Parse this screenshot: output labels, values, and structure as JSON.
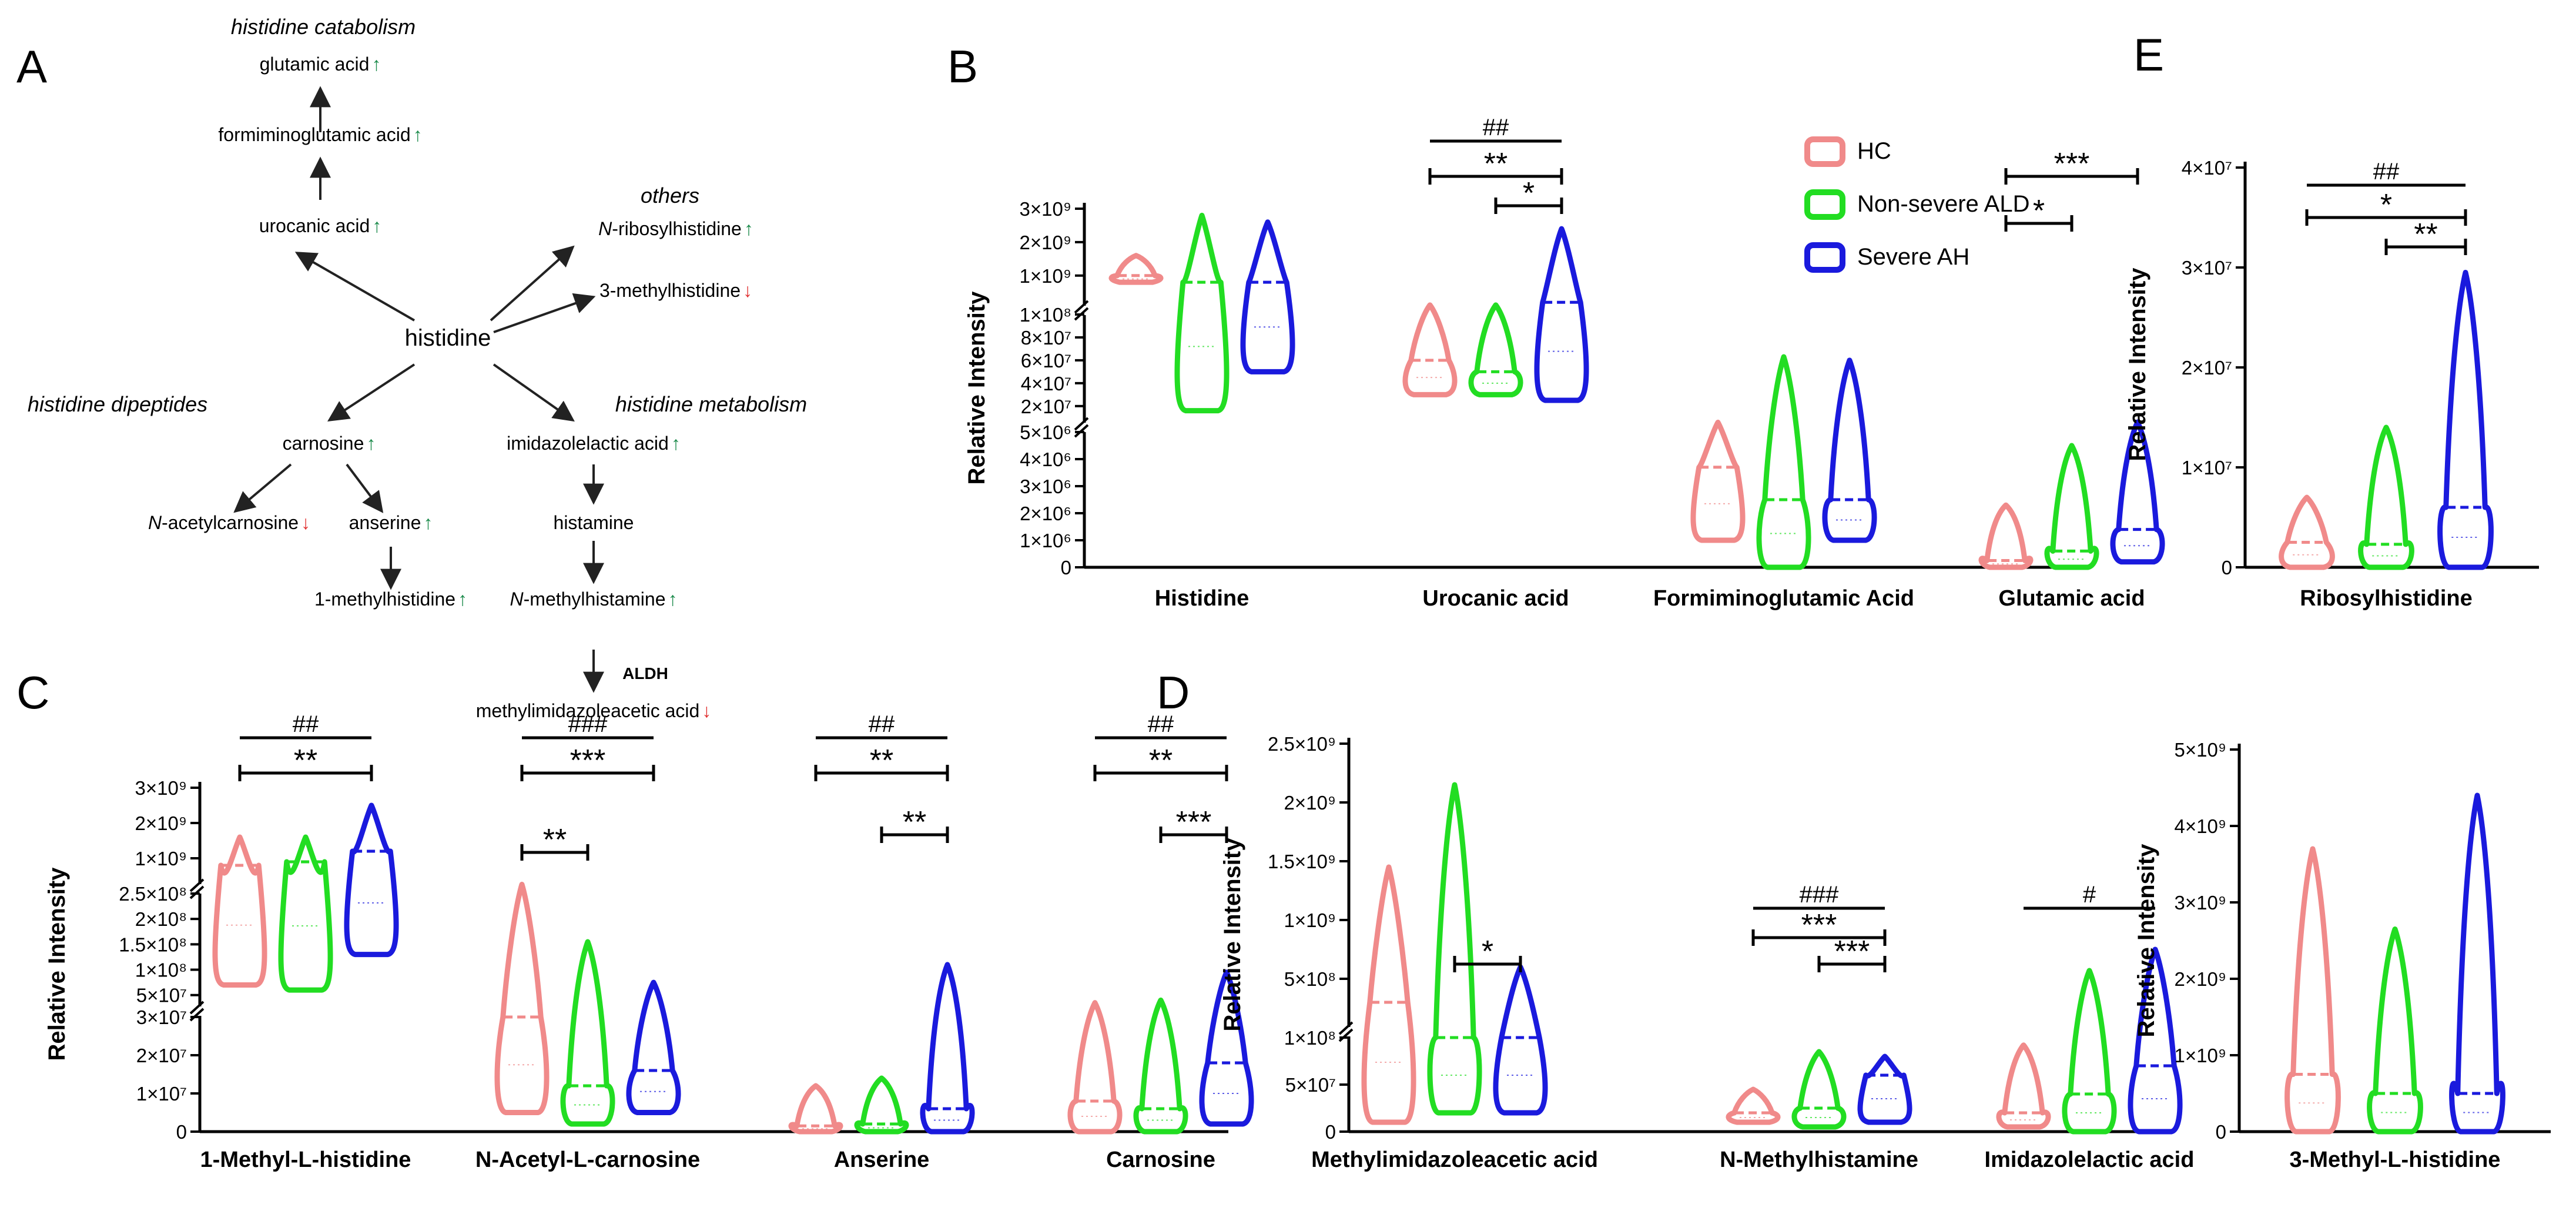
{
  "colors": {
    "hc": "#F08A8A",
    "nonsevere": "#22DD22",
    "severe": "#1A1ADD",
    "up": "#1a8a4a",
    "down": "#e03030"
  },
  "panel_letters": {
    "a": "A",
    "b": "B",
    "c": "C",
    "d": "D",
    "e": "E"
  },
  "pathway": {
    "center": "histidine",
    "titles": {
      "catabolism": "histidine catabolism",
      "others": "others",
      "dipeptides": "histidine dipeptides",
      "metabolism": "histidine metabolism"
    },
    "nodes": [
      {
        "id": "glutamic",
        "label": "glutamic acid",
        "italic_prefix": "",
        "dir": "up"
      },
      {
        "id": "formimino",
        "label": "formiminoglutamic acid",
        "italic_prefix": "",
        "dir": "up"
      },
      {
        "id": "urocanic",
        "label": "urocanic acid",
        "italic_prefix": "",
        "dir": "up"
      },
      {
        "id": "ribosyl",
        "label": "-ribosylhistidine",
        "italic_prefix": "N",
        "dir": "up"
      },
      {
        "id": "methylhis3",
        "label": "3-methylhistidine",
        "italic_prefix": "",
        "dir": "down"
      },
      {
        "id": "carnosine",
        "label": "carnosine",
        "italic_prefix": "",
        "dir": "up"
      },
      {
        "id": "imidazolelactic",
        "label": "imidazolelactic acid",
        "italic_prefix": "",
        "dir": "up"
      },
      {
        "id": "acetylcarnosine",
        "label": "-acetylcarnosine",
        "italic_prefix": "N",
        "dir": "down"
      },
      {
        "id": "anserine",
        "label": "anserine",
        "italic_prefix": "",
        "dir": "up"
      },
      {
        "id": "histamine",
        "label": "histamine",
        "italic_prefix": "",
        "dir": ""
      },
      {
        "id": "methylhis1",
        "label": "1-methylhistidine",
        "italic_prefix": "",
        "dir": "up"
      },
      {
        "id": "methylhistamine",
        "label": "-methylhistamine",
        "italic_prefix": "N",
        "dir": "up"
      },
      {
        "id": "methylimid",
        "label": "methylimidazoleacetic acid",
        "italic_prefix": "",
        "dir": "down"
      }
    ],
    "enzyme": "ALDH"
  },
  "legend": [
    {
      "key": "hc",
      "label": "HC"
    },
    {
      "key": "nonsevere",
      "label": "Non-severe ALD"
    },
    {
      "key": "severe",
      "label": "Severe AH"
    }
  ],
  "chart_data": [
    {
      "id": "B",
      "type": "violin",
      "ylabel": "Relative Intensity",
      "categories": [
        "Histidine",
        "Urocanic acid",
        "Formiminoglutamic Acid",
        "Glutamic acid"
      ],
      "yticks": [
        "0",
        "1×10⁶",
        "2×10⁶",
        "3×10⁶",
        "4×10⁶",
        "5×10⁶",
        "2×10⁷",
        "4×10⁷",
        "6×10⁷",
        "8×10⁷",
        "1×10⁸",
        "1×10⁹",
        "2×10⁹",
        "3×10⁹"
      ],
      "series": [
        {
          "key": "hc",
          "values": [
            [
              800000000.0,
              1000000000.0,
              1600000000.0
            ],
            [
              30000000.0,
              60000000.0,
              120000000.0
            ],
            [
              1000000.0,
              3700000.0,
              5800000.0
            ],
            [
              0,
              250000.0,
              2300000.0
            ]
          ]
        },
        {
          "key": "nonsevere",
          "values": [
            [
              16000000.0,
              800000000.0,
              2800000000.0
            ],
            [
              30000000.0,
              50000000.0,
              120000000.0
            ],
            [
              0,
              2500000.0,
              63000000.0
            ],
            [
              0,
              600000.0,
              4500000.0
            ]
          ]
        },
        {
          "key": "severe",
          "values": [
            [
              50000000.0,
              800000000.0,
              2600000000.0
            ],
            [
              25000000.0,
              200000000.0,
              2400000000.0
            ],
            [
              1000000.0,
              2500000.0,
              60000000.0
            ],
            [
              200000.0,
              1400000.0,
              6000000.0
            ]
          ]
        }
      ],
      "annotations": [
        {
          "text": "##",
          "category": "Urocanic acid",
          "from": "hc",
          "to": "severe"
        },
        {
          "text": "**",
          "category": "Urocanic acid",
          "from": "hc",
          "to": "severe"
        },
        {
          "text": "*",
          "category": "Urocanic acid",
          "from": "nonsevere",
          "to": "severe"
        },
        {
          "text": "***",
          "category": "Glutamic acid",
          "from": "hc",
          "to": "severe"
        },
        {
          "text": "*",
          "category": "Glutamic acid",
          "from": "hc",
          "to": "nonsevere"
        }
      ]
    },
    {
      "id": "E",
      "type": "violin",
      "ylabel": "Relative Intensity",
      "categories": [
        "Ribosylhistidine"
      ],
      "ylim": [
        0,
        40000000.0
      ],
      "yticks": [
        "0",
        "1×10⁷",
        "2×10⁷",
        "3×10⁷",
        "4×10⁷"
      ],
      "series": [
        {
          "key": "hc",
          "values": [
            [
              0,
              2500000.0,
              7000000.0
            ]
          ]
        },
        {
          "key": "nonsevere",
          "values": [
            [
              0,
              2300000.0,
              14000000.0
            ]
          ]
        },
        {
          "key": "severe",
          "values": [
            [
              0,
              6000000.0,
              29500000.0
            ]
          ]
        }
      ],
      "annotations": [
        {
          "text": "##",
          "category": "Ribosylhistidine",
          "from": "hc",
          "to": "severe"
        },
        {
          "text": "*",
          "category": "Ribosylhistidine",
          "from": "hc",
          "to": "severe"
        },
        {
          "text": "**",
          "category": "Ribosylhistidine",
          "from": "nonsevere",
          "to": "severe"
        }
      ]
    },
    {
      "id": "C",
      "type": "violin",
      "ylabel": "Relative Intensity",
      "categories": [
        "1-Methyl-L-histidine",
        "N-Acetyl-L-carnosine",
        "Anserine",
        "Carnosine"
      ],
      "yticks": [
        "0",
        "1×10⁷",
        "2×10⁷",
        "3×10⁷",
        "5×10⁷",
        "1×10⁸",
        "1.5×10⁸",
        "2×10⁸",
        "2.5×10⁸",
        "1×10⁹",
        "2×10⁹",
        "3×10⁹"
      ],
      "series": [
        {
          "key": "hc",
          "values": [
            [
              70000000.0,
              800000000.0,
              1600000000.0
            ],
            [
              5000000.0,
              30000000.0,
              260000000.0
            ],
            [
              0,
              1500000.0,
              12000000.0
            ],
            [
              0,
              8000000.0,
              35000000.0
            ]
          ]
        },
        {
          "key": "nonsevere",
          "values": [
            [
              60000000.0,
              900000000.0,
              1600000000.0
            ],
            [
              2000000.0,
              12000000.0,
              155000000.0
            ],
            [
              0,
              2000000.0,
              14000000.0
            ],
            [
              0,
              6000000.0,
              40000000.0
            ]
          ]
        },
        {
          "key": "severe",
          "values": [
            [
              130000000.0,
              1200000000.0,
              2500000000.0
            ],
            [
              5000000.0,
              16000000.0,
              75000000.0
            ],
            [
              0,
              6000000.0,
              110000000.0
            ],
            [
              2000000.0,
              18000000.0,
              95000000.0
            ]
          ]
        }
      ],
      "annotations": [
        {
          "text": "##",
          "category": "1-Methyl-L-histidine",
          "from": "hc",
          "to": "severe"
        },
        {
          "text": "**",
          "category": "1-Methyl-L-histidine",
          "from": "hc",
          "to": "severe"
        },
        {
          "text": "###",
          "category": "N-Acetyl-L-carnosine",
          "from": "hc",
          "to": "severe"
        },
        {
          "text": "***",
          "category": "N-Acetyl-L-carnosine",
          "from": "hc",
          "to": "severe"
        },
        {
          "text": "**",
          "category": "N-Acetyl-L-carnosine",
          "from": "hc",
          "to": "nonsevere"
        },
        {
          "text": "##",
          "category": "Anserine",
          "from": "hc",
          "to": "severe"
        },
        {
          "text": "**",
          "category": "Anserine",
          "from": "hc",
          "to": "severe"
        },
        {
          "text": "**",
          "category": "Anserine",
          "from": "nonsevere",
          "to": "severe"
        },
        {
          "text": "##",
          "category": "Carnosine",
          "from": "hc",
          "to": "severe"
        },
        {
          "text": "**",
          "category": "Carnosine",
          "from": "hc",
          "to": "severe"
        },
        {
          "text": "***",
          "category": "Carnosine",
          "from": "nonsevere",
          "to": "severe"
        }
      ]
    },
    {
      "id": "D",
      "type": "violin",
      "ylabel": "Relative Intensity",
      "categories": [
        "Methylimidazoleacetic acid",
        "N-Methylhistamine",
        "Imidazolelactic acid"
      ],
      "yticks": [
        "0",
        "5×10⁷",
        "1×10⁸",
        "5×10⁸",
        "1×10⁹",
        "1.5×10⁹",
        "2×10⁹",
        "2.5×10⁹"
      ],
      "series": [
        {
          "key": "hc",
          "values": [
            [
              10000000.0,
              300000000.0,
              1450000000.0
            ],
            [
              10000000.0,
              20000000.0,
              45000000.0
            ],
            [
              5000000.0,
              20000000.0,
              92000000.0
            ]
          ]
        },
        {
          "key": "nonsevere",
          "values": [
            [
              20000000.0,
              100000000.0,
              2150000000.0
            ],
            [
              5000000.0,
              25000000.0,
              85000000.0
            ],
            [
              0,
              40000000.0,
              570000000.0
            ]
          ]
        },
        {
          "key": "severe",
          "values": [
            [
              20000000.0,
              100000000.0,
              600000000.0
            ],
            [
              10000000.0,
              60000000.0,
              80000000.0
            ],
            [
              0,
              70000000.0,
              750000000.0
            ]
          ]
        }
      ],
      "annotations": [
        {
          "text": "*",
          "category": "Methylimidazoleacetic acid",
          "from": "nonsevere",
          "to": "severe"
        },
        {
          "text": "###",
          "category": "N-Methylhistamine",
          "from": "hc",
          "to": "severe"
        },
        {
          "text": "***",
          "category": "N-Methylhistamine",
          "from": "hc",
          "to": "severe"
        },
        {
          "text": "***",
          "category": "N-Methylhistamine",
          "from": "nonsevere",
          "to": "severe"
        },
        {
          "text": "#",
          "category": "Imidazolelactic acid",
          "from": "hc",
          "to": "severe"
        }
      ]
    },
    {
      "id": "D2",
      "type": "violin",
      "ylabel": "Relative Intensity",
      "categories": [
        "3-Methyl-L-histidine"
      ],
      "ylim": [
        0,
        5000000000.0
      ],
      "yticks": [
        "0",
        "1×10⁹",
        "2×10⁹",
        "3×10⁹",
        "4×10⁹",
        "5×10⁹"
      ],
      "series": [
        {
          "key": "hc",
          "values": [
            [
              0,
              750000000.0,
              3700000000.0
            ]
          ]
        },
        {
          "key": "nonsevere",
          "values": [
            [
              0,
              500000000.0,
              2650000000.0
            ]
          ]
        },
        {
          "key": "severe",
          "values": [
            [
              0,
              500000000.0,
              4400000000.0
            ]
          ]
        }
      ],
      "annotations": []
    }
  ]
}
